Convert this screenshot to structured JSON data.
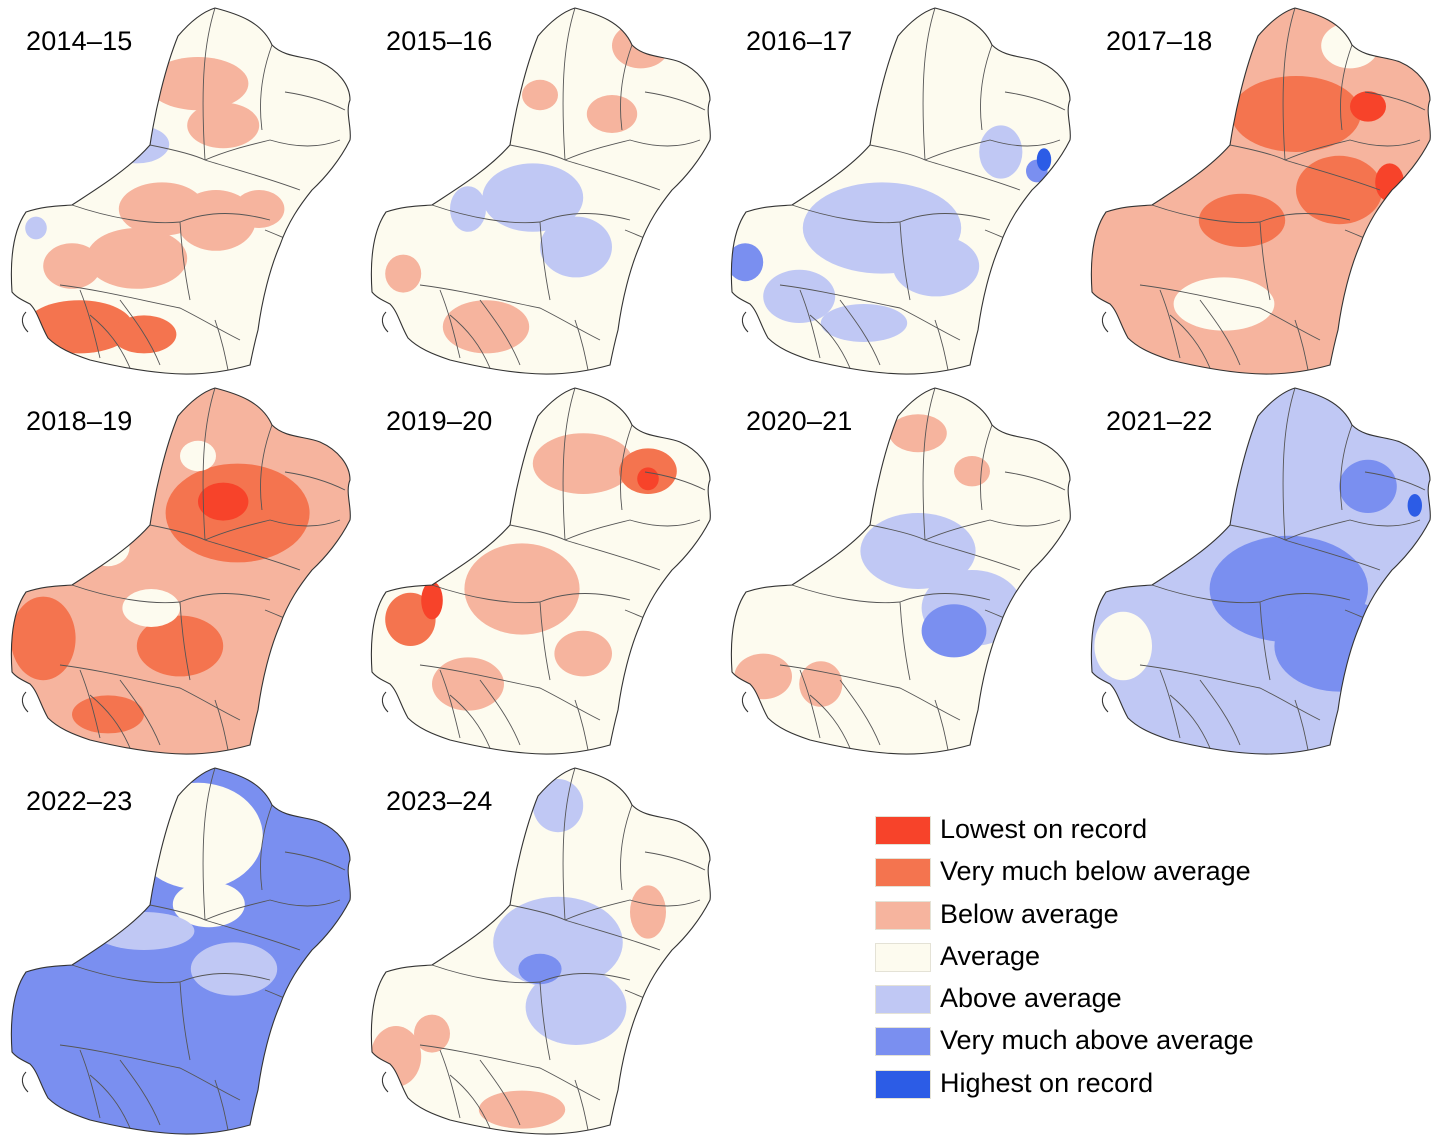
{
  "palette": {
    "lowest": "#f7432a",
    "very_below": "#f4744f",
    "below": "#f6b49e",
    "average": "#fdfbef",
    "above": "#c0c8f4",
    "very_above": "#7a8ff0",
    "highest": "#2c5ce6"
  },
  "panels": [
    {
      "title": "2014–15",
      "base": "average",
      "blobs": [
        [
          "below",
          0.55,
          0.22,
          0.14,
          0.07
        ],
        [
          "below",
          0.62,
          0.33,
          0.1,
          0.06
        ],
        [
          "below",
          0.45,
          0.55,
          0.12,
          0.07
        ],
        [
          "below",
          0.6,
          0.58,
          0.11,
          0.08
        ],
        [
          "below",
          0.38,
          0.68,
          0.14,
          0.08
        ],
        [
          "very_below",
          0.22,
          0.86,
          0.15,
          0.07
        ],
        [
          "very_below",
          0.4,
          0.88,
          0.09,
          0.05
        ],
        [
          "below",
          0.2,
          0.7,
          0.08,
          0.06
        ],
        [
          "below",
          0.72,
          0.55,
          0.07,
          0.05
        ],
        [
          "above",
          0.38,
          0.38,
          0.09,
          0.05
        ],
        [
          "above",
          0.1,
          0.6,
          0.03,
          0.03
        ]
      ]
    },
    {
      "title": "2015–16",
      "base": "average",
      "blobs": [
        [
          "above",
          0.48,
          0.52,
          0.14,
          0.09
        ],
        [
          "above",
          0.6,
          0.65,
          0.1,
          0.08
        ],
        [
          "above",
          0.3,
          0.55,
          0.05,
          0.06
        ],
        [
          "below",
          0.35,
          0.86,
          0.12,
          0.07
        ],
        [
          "below",
          0.12,
          0.72,
          0.05,
          0.05
        ],
        [
          "below",
          0.7,
          0.3,
          0.07,
          0.05
        ],
        [
          "below",
          0.78,
          0.12,
          0.08,
          0.06
        ],
        [
          "below",
          0.5,
          0.25,
          0.05,
          0.04
        ]
      ]
    },
    {
      "title": "2016–17",
      "base": "average",
      "blobs": [
        [
          "above",
          0.45,
          0.6,
          0.22,
          0.12
        ],
        [
          "above",
          0.6,
          0.7,
          0.12,
          0.08
        ],
        [
          "above",
          0.22,
          0.78,
          0.1,
          0.07
        ],
        [
          "above",
          0.78,
          0.4,
          0.06,
          0.07
        ],
        [
          "very_above",
          0.07,
          0.69,
          0.05,
          0.05
        ],
        [
          "very_above",
          0.88,
          0.45,
          0.03,
          0.03
        ],
        [
          "highest",
          0.9,
          0.42,
          0.02,
          0.03
        ],
        [
          "above",
          0.4,
          0.85,
          0.12,
          0.05
        ]
      ]
    },
    {
      "title": "2017–18",
      "base": "below",
      "blobs": [
        [
          "very_below",
          0.6,
          0.3,
          0.18,
          0.1
        ],
        [
          "very_below",
          0.45,
          0.58,
          0.12,
          0.07
        ],
        [
          "very_below",
          0.72,
          0.5,
          0.12,
          0.09
        ],
        [
          "very_below",
          0.33,
          0.2,
          0.1,
          0.08
        ],
        [
          "lowest",
          0.86,
          0.48,
          0.04,
          0.05
        ],
        [
          "lowest",
          0.8,
          0.28,
          0.05,
          0.04
        ],
        [
          "average",
          0.4,
          0.8,
          0.14,
          0.07
        ],
        [
          "average",
          0.75,
          0.12,
          0.08,
          0.06
        ]
      ]
    },
    {
      "title": "2018–19",
      "base": "below",
      "blobs": [
        [
          "very_below",
          0.66,
          0.35,
          0.2,
          0.13
        ],
        [
          "lowest",
          0.62,
          0.32,
          0.07,
          0.05
        ],
        [
          "very_below",
          0.12,
          0.68,
          0.09,
          0.11
        ],
        [
          "very_below",
          0.5,
          0.7,
          0.12,
          0.08
        ],
        [
          "very_below",
          0.3,
          0.88,
          0.1,
          0.05
        ],
        [
          "average",
          0.42,
          0.6,
          0.08,
          0.05
        ],
        [
          "average",
          0.3,
          0.44,
          0.06,
          0.05
        ],
        [
          "average",
          0.55,
          0.2,
          0.05,
          0.04
        ]
      ]
    },
    {
      "title": "2019–20",
      "base": "average",
      "blobs": [
        [
          "below",
          0.45,
          0.55,
          0.16,
          0.12
        ],
        [
          "very_below",
          0.14,
          0.63,
          0.07,
          0.07
        ],
        [
          "lowest",
          0.2,
          0.58,
          0.03,
          0.05
        ],
        [
          "below",
          0.62,
          0.22,
          0.14,
          0.08
        ],
        [
          "very_below",
          0.8,
          0.24,
          0.08,
          0.06
        ],
        [
          "lowest",
          0.8,
          0.26,
          0.03,
          0.03
        ],
        [
          "below",
          0.3,
          0.8,
          0.1,
          0.07
        ],
        [
          "below",
          0.62,
          0.72,
          0.08,
          0.06
        ],
        [
          "below",
          0.8,
          0.8,
          0.05,
          0.06
        ]
      ]
    },
    {
      "title": "2020–21",
      "base": "average",
      "blobs": [
        [
          "above",
          0.55,
          0.45,
          0.16,
          0.1
        ],
        [
          "above",
          0.7,
          0.6,
          0.14,
          0.1
        ],
        [
          "very_above",
          0.65,
          0.66,
          0.09,
          0.07
        ],
        [
          "very_above",
          0.8,
          0.78,
          0.06,
          0.06
        ],
        [
          "below",
          0.12,
          0.78,
          0.08,
          0.06
        ],
        [
          "below",
          0.28,
          0.8,
          0.06,
          0.06
        ],
        [
          "below",
          0.55,
          0.14,
          0.08,
          0.05
        ],
        [
          "below",
          0.7,
          0.24,
          0.05,
          0.04
        ]
      ]
    },
    {
      "title": "2021–22",
      "base": "above",
      "blobs": [
        [
          "very_above",
          0.58,
          0.55,
          0.22,
          0.14
        ],
        [
          "very_above",
          0.72,
          0.7,
          0.18,
          0.12
        ],
        [
          "very_above",
          0.8,
          0.28,
          0.08,
          0.07
        ],
        [
          "highest",
          0.93,
          0.33,
          0.02,
          0.03
        ],
        [
          "average",
          0.12,
          0.7,
          0.08,
          0.09
        ],
        [
          "average",
          0.4,
          0.18,
          0.06,
          0.06
        ],
        [
          "above",
          0.45,
          0.75,
          0.1,
          0.07
        ]
      ]
    },
    {
      "title": "2022–23",
      "base": "very_above",
      "blobs": [
        [
          "average",
          0.55,
          0.2,
          0.18,
          0.14
        ],
        [
          "average",
          0.58,
          0.38,
          0.1,
          0.06
        ],
        [
          "above",
          0.4,
          0.45,
          0.14,
          0.05
        ],
        [
          "above",
          0.65,
          0.55,
          0.12,
          0.07
        ],
        [
          "very_above",
          0.82,
          0.58,
          0.04,
          0.04
        ]
      ]
    },
    {
      "title": "2023–24",
      "base": "average",
      "blobs": [
        [
          "above",
          0.55,
          0.48,
          0.18,
          0.12
        ],
        [
          "above",
          0.6,
          0.65,
          0.14,
          0.1
        ],
        [
          "above",
          0.55,
          0.12,
          0.07,
          0.07
        ],
        [
          "very_above",
          0.5,
          0.55,
          0.06,
          0.04
        ],
        [
          "below",
          0.1,
          0.78,
          0.07,
          0.08
        ],
        [
          "below",
          0.2,
          0.72,
          0.05,
          0.05
        ],
        [
          "below",
          0.45,
          0.92,
          0.12,
          0.05
        ],
        [
          "below",
          0.8,
          0.4,
          0.05,
          0.07
        ]
      ]
    }
  ],
  "legend": [
    {
      "label": "Lowest on record",
      "color": "#f7432a"
    },
    {
      "label": "Very much below average",
      "color": "#f4744f"
    },
    {
      "label": "Below average",
      "color": "#f6b49e"
    },
    {
      "label": "Average",
      "color": "#fdfbef"
    },
    {
      "label": "Above average",
      "color": "#c0c8f4"
    },
    {
      "label": "Very much above average",
      "color": "#7a8ff0"
    },
    {
      "label": "Highest on record",
      "color": "#2c5ce6"
    }
  ]
}
